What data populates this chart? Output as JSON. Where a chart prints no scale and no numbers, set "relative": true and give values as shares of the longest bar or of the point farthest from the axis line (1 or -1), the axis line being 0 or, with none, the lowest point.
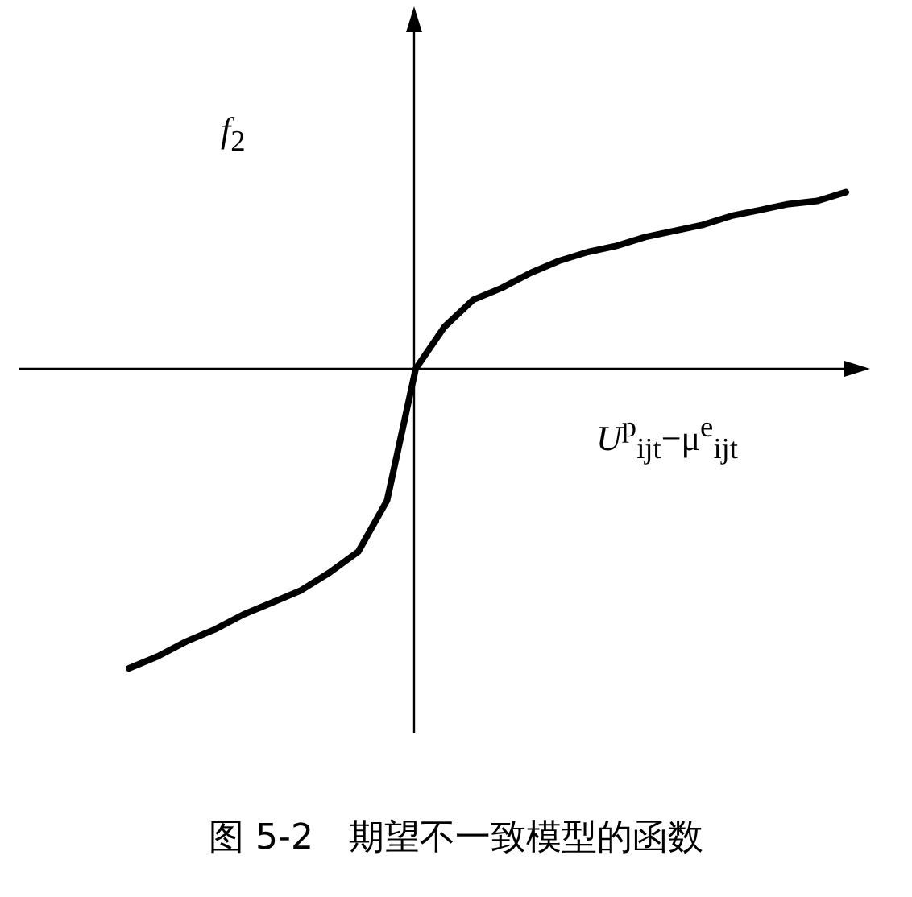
{
  "chart_data": {
    "type": "line",
    "relative": true,
    "ylabel": "*f*$_{2}$",
    "xlabel": "*U*$^{p}$$_{ijt}$−μ$^{e}$$_{ijt}$",
    "annotations": [
      "图 5-2　期望不一致模型的函数"
    ],
    "categories": [
      null,
      null,
      null,
      null,
      null,
      null,
      null,
      null,
      null,
      null,
      null,
      null,
      null,
      null,
      null,
      null,
      null,
      null,
      null,
      null,
      null,
      null,
      null,
      null,
      null,
      null
    ],
    "series": [
      {
        "color": "#000000",
        "values": [
          -1,
          -0.96,
          -0.91,
          -0.87,
          -0.82,
          -0.78,
          -0.74,
          -0.68,
          -0.61,
          -0.44,
          0,
          0.14,
          0.23,
          0.27,
          0.32,
          0.36,
          0.39,
          0.41,
          0.44,
          0.46,
          0.48,
          0.51,
          0.53,
          0.55,
          0.56,
          0.59
        ]
      }
    ]
  }
}
